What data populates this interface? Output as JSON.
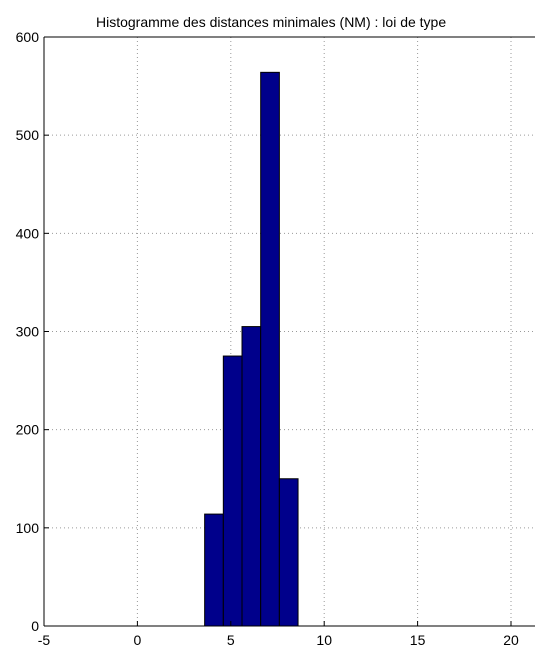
{
  "chart_data": {
    "type": "bar",
    "title": "Histogramme des distances minimales (NM) : loi de type",
    "xlabel": "",
    "ylabel": "",
    "xlim": [
      -5,
      21
    ],
    "ylim": [
      0,
      600
    ],
    "x_ticks": [
      "-5",
      "0",
      "5",
      "10",
      "15",
      "20"
    ],
    "y_ticks": [
      "0",
      "100",
      "200",
      "300",
      "400",
      "500",
      "600"
    ],
    "grid": true,
    "bar_color": "#00008b",
    "bins": [
      {
        "x0": 3.6,
        "x1": 4.6,
        "value": 114
      },
      {
        "x0": 4.6,
        "x1": 5.6,
        "value": 275
      },
      {
        "x0": 5.6,
        "x1": 6.6,
        "value": 305
      },
      {
        "x0": 6.6,
        "x1": 7.6,
        "value": 564
      },
      {
        "x0": 7.6,
        "x1": 8.6,
        "value": 150
      }
    ]
  }
}
